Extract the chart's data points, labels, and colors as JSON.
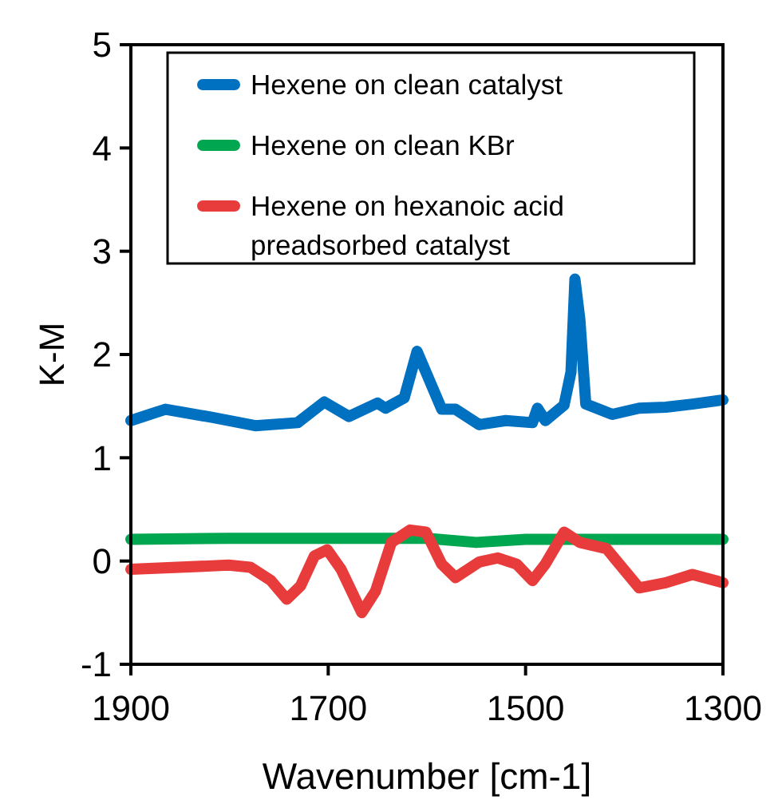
{
  "chart_data": {
    "type": "line",
    "xlabel": "Wavenumber [cm-1]",
    "ylabel": "K-M",
    "xlim": [
      1900,
      1300
    ],
    "xticks": [
      1900,
      1700,
      1500,
      1300
    ],
    "ylim": [
      -1,
      5
    ],
    "yticks": [
      -1,
      0,
      1,
      2,
      3,
      4,
      5
    ],
    "grid": false,
    "legend": "top",
    "marker": "none",
    "line_style": "solid",
    "series": [
      {
        "name": "Hexene on clean catalyst",
        "color": "#0070c0",
        "x": [
          1900,
          1865,
          1817,
          1774,
          1731,
          1704,
          1679,
          1650,
          1642,
          1623,
          1610,
          1601,
          1585,
          1571,
          1547,
          1520,
          1493,
          1488,
          1480,
          1461,
          1454,
          1450,
          1445,
          1439,
          1412,
          1385,
          1358,
          1331,
          1300
        ],
        "values": [
          1.36,
          1.47,
          1.39,
          1.31,
          1.34,
          1.54,
          1.4,
          1.53,
          1.48,
          1.58,
          2.03,
          1.83,
          1.47,
          1.47,
          1.32,
          1.36,
          1.34,
          1.48,
          1.36,
          1.51,
          1.83,
          2.73,
          2.34,
          1.52,
          1.42,
          1.48,
          1.49,
          1.52,
          1.56
        ]
      },
      {
        "name": "Hexene on clean KBr",
        "color": "#00a650",
        "x": [
          1900,
          1800,
          1700,
          1600,
          1550,
          1500,
          1400,
          1300
        ],
        "values": [
          0.21,
          0.22,
          0.22,
          0.22,
          0.18,
          0.21,
          0.21,
          0.21
        ]
      },
      {
        "name": "Hexene on hexanoic acid preadsorbed catalyst",
        "color": "#e83c3c",
        "x": [
          1900,
          1801,
          1779,
          1758,
          1742,
          1728,
          1714,
          1701,
          1687,
          1666,
          1652,
          1636,
          1617,
          1601,
          1585,
          1571,
          1547,
          1528,
          1509,
          1493,
          1480,
          1461,
          1445,
          1418,
          1385,
          1358,
          1331,
          1300
        ],
        "values": [
          -0.08,
          -0.04,
          -0.06,
          -0.19,
          -0.37,
          -0.24,
          0.05,
          0.11,
          -0.08,
          -0.5,
          -0.29,
          0.18,
          0.3,
          0.28,
          -0.03,
          -0.16,
          -0.01,
          0.03,
          -0.03,
          -0.19,
          -0.03,
          0.28,
          0.18,
          0.12,
          -0.26,
          -0.21,
          -0.13,
          -0.21
        ]
      }
    ]
  }
}
